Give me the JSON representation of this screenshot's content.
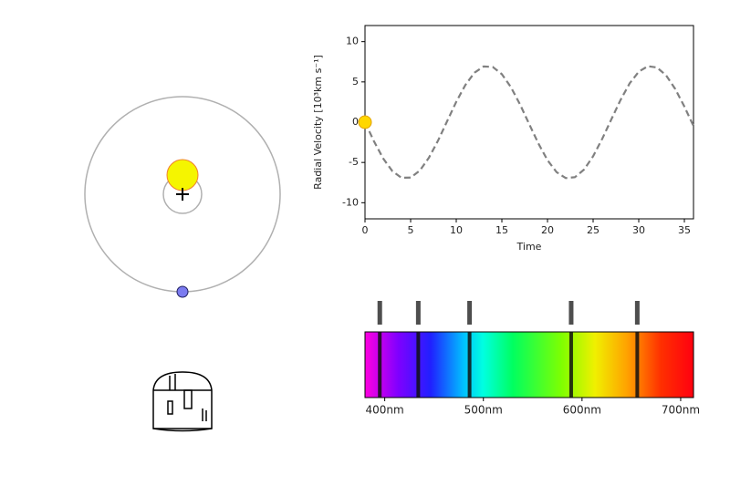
{
  "chart_data": [
    {
      "type": "line",
      "xlabel": "Time",
      "ylabel": "Radial Velocity [10³km s⁻¹]",
      "x": [
        0,
        1,
        2,
        3,
        4,
        5,
        6,
        7,
        8,
        9,
        10,
        11,
        12,
        13,
        14,
        15,
        16,
        17,
        18,
        19,
        20,
        21,
        22,
        23,
        24,
        25,
        26,
        27,
        28,
        29,
        30,
        31,
        32,
        33,
        34,
        35,
        36
      ],
      "series": [
        {
          "color": "#808080",
          "values": [
            0,
            -2.41,
            -4.52,
            -6.08,
            -6.9,
            -6.88,
            -6.02,
            -4.42,
            -2.3,
            0.12,
            2.53,
            4.62,
            6.15,
            6.92,
            6.86,
            5.96,
            4.33,
            2.18,
            -0.25,
            -2.64,
            -4.72,
            -6.21,
            -6.94,
            -6.83,
            -5.89,
            -4.23,
            -2.06,
            0.36,
            2.75,
            4.81,
            6.27,
            6.95,
            6.79,
            5.81,
            4.12,
            1.94,
            -0.48
          ]
        }
      ],
      "marker": {
        "x": 0,
        "y": 0,
        "color": "#ffd700"
      },
      "xlim": [
        0,
        36
      ],
      "ylim": [
        -12,
        12
      ],
      "xticks": [
        0,
        5,
        10,
        15,
        20,
        25,
        30,
        35
      ],
      "yticks": [
        -10,
        -5,
        0,
        5,
        10
      ]
    },
    {
      "type": "spectrum",
      "lines": [
        395,
        434,
        486,
        589,
        656
      ],
      "xlim": [
        380,
        713
      ],
      "xticks": [
        {
          "value": 400,
          "label": "400nm"
        },
        {
          "value": 500,
          "label": "500nm"
        },
        {
          "value": 600,
          "label": "600nm"
        },
        {
          "value": 700,
          "label": "700nm"
        }
      ]
    }
  ]
}
